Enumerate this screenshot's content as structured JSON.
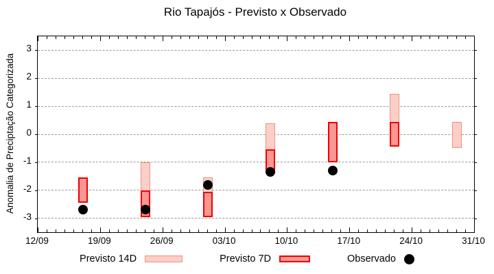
{
  "title": "Rio Tapajós - Previsto x Observado",
  "chart_data": {
    "type": "bar",
    "title": "Rio Tapajós - Previsto x Observado",
    "ylabel": "Anomalia de Preciptação Categorizada",
    "ylim": [
      -3.5,
      3.5
    ],
    "yticks": [
      3,
      2,
      1,
      0,
      -1,
      -2,
      -3
    ],
    "xlim_days": [
      0,
      49
    ],
    "xticks": [
      {
        "day": 0,
        "label": "12/09"
      },
      {
        "day": 7,
        "label": "19/09"
      },
      {
        "day": 14,
        "label": "26/09"
      },
      {
        "day": 21,
        "label": "03/10"
      },
      {
        "day": 28,
        "label": "10/10"
      },
      {
        "day": 35,
        "label": "17/10"
      },
      {
        "day": 42,
        "label": "24/10"
      },
      {
        "day": 49,
        "label": "31/10"
      }
    ],
    "minor_tick_every_days": 1,
    "grid": {
      "horizontal": true,
      "style": "dashed"
    },
    "legend": [
      {
        "label": "Previsto 14D",
        "swatch": "box-light"
      },
      {
        "label": "Previsto 7D",
        "swatch": "box-dark"
      },
      {
        "label": "Observado",
        "swatch": "dot"
      }
    ],
    "series": [
      {
        "x_day": 5.1,
        "previsto_14d": null,
        "previsto_7d": [
          -1.55,
          -2.45
        ],
        "observado": -2.7
      },
      {
        "x_day": 12.1,
        "previsto_14d": [
          -1.0,
          -2.95
        ],
        "previsto_7d": [
          -2.0,
          -2.95
        ],
        "observado": -2.7
      },
      {
        "x_day": 19.1,
        "previsto_14d": [
          -1.55,
          -2.95
        ],
        "previsto_7d": [
          -2.05,
          -2.95
        ],
        "observado": -1.8
      },
      {
        "x_day": 26.1,
        "previsto_14d": [
          0.4,
          -1.4
        ],
        "previsto_7d": [
          -0.55,
          -1.4
        ],
        "observado": -1.35
      },
      {
        "x_day": 33.1,
        "previsto_14d": null,
        "previsto_7d": [
          0.45,
          -1.0
        ],
        "observado": -1.3
      },
      {
        "x_day": 40.1,
        "previsto_14d": [
          1.45,
          -0.45
        ],
        "previsto_7d": [
          0.45,
          -0.45
        ],
        "observado": null
      },
      {
        "x_day": 47.1,
        "previsto_14d": [
          0.45,
          -0.5
        ],
        "previsto_7d": null,
        "observado": null
      }
    ]
  },
  "colors": {
    "background": "#ffffff",
    "frame": "#000000",
    "grid": "#999999",
    "previsto_14d_fill": "#FBCFC8",
    "previsto_14d_border": "#F0907E",
    "previsto_7d_fill": "#FA9790",
    "previsto_7d_border": "#EE0000",
    "observado": "#000000",
    "text": "#000000"
  }
}
